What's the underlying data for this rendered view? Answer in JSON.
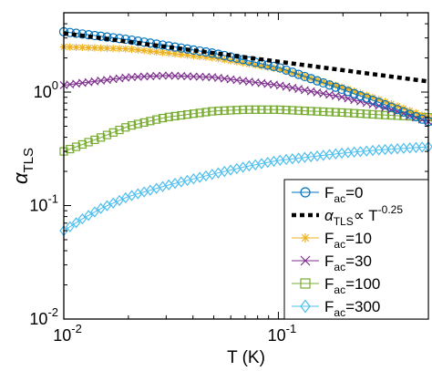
{
  "chart_data": {
    "type": "scatter",
    "xlabel": "T (K)",
    "ylabel_main": "α",
    "ylabel_sub": "TLS",
    "xscale": "log",
    "yscale": "log",
    "xlim": [
      0.01,
      0.5
    ],
    "ylim": [
      0.01,
      5
    ],
    "x_ticks": [
      {
        "value": 0.01,
        "base": "10",
        "exp": "-2"
      },
      {
        "value": 0.1,
        "base": "10",
        "exp": "-1"
      }
    ],
    "y_ticks": [
      {
        "value": 0.01,
        "base": "10",
        "exp": "-2"
      },
      {
        "value": 0.1,
        "base": "10",
        "exp": "-1"
      },
      {
        "value": 1,
        "base": "10",
        "exp": "0"
      }
    ],
    "grid": false,
    "legend_position": "bottom-right",
    "series": [
      {
        "name_main": "F",
        "name_sub": "ac",
        "name_tail": "=0",
        "marker": "circle",
        "color": "#0072BD",
        "x": [
          0.01,
          0.02,
          0.05,
          0.1,
          0.2,
          0.3,
          0.5
        ],
        "y": [
          3.4,
          2.9,
          2.2,
          1.65,
          1.05,
          0.8,
          0.55
        ]
      },
      {
        "name_main": "α",
        "name_sub": "TLS",
        "name_tail": "∝ T",
        "name_sup": "-0.25",
        "marker": "dash",
        "color": "#000000",
        "x": [
          0.01,
          0.5
        ],
        "y": [
          3.3,
          1.24
        ]
      },
      {
        "name_main": "F",
        "name_sub": "ac",
        "name_tail": "=10",
        "marker": "asterisk",
        "color": "#EDB120",
        "x": [
          0.01,
          0.02,
          0.05,
          0.1,
          0.2,
          0.3,
          0.5
        ],
        "y": [
          2.5,
          2.4,
          2.0,
          1.6,
          1.1,
          0.85,
          0.6
        ]
      },
      {
        "name_main": "F",
        "name_sub": "ac",
        "name_tail": "=30",
        "marker": "x",
        "color": "#7E2F8E",
        "x": [
          0.01,
          0.02,
          0.03,
          0.05,
          0.1,
          0.2,
          0.3,
          0.5
        ],
        "y": [
          1.15,
          1.35,
          1.4,
          1.35,
          1.15,
          0.9,
          0.75,
          0.55
        ]
      },
      {
        "name_main": "F",
        "name_sub": "ac",
        "name_tail": "=100",
        "marker": "square",
        "color": "#77AC30",
        "x": [
          0.01,
          0.015,
          0.02,
          0.03,
          0.05,
          0.07,
          0.1,
          0.2,
          0.3,
          0.5
        ],
        "y": [
          0.3,
          0.4,
          0.5,
          0.6,
          0.68,
          0.7,
          0.7,
          0.66,
          0.63,
          0.6
        ]
      },
      {
        "name_main": "F",
        "name_sub": "ac",
        "name_tail": "=300",
        "marker": "diamond",
        "color": "#4DBEEE",
        "x": [
          0.01,
          0.012,
          0.015,
          0.02,
          0.03,
          0.05,
          0.07,
          0.1,
          0.2,
          0.3,
          0.5
        ],
        "y": [
          0.06,
          0.075,
          0.095,
          0.12,
          0.15,
          0.19,
          0.22,
          0.25,
          0.29,
          0.31,
          0.33
        ]
      }
    ]
  }
}
